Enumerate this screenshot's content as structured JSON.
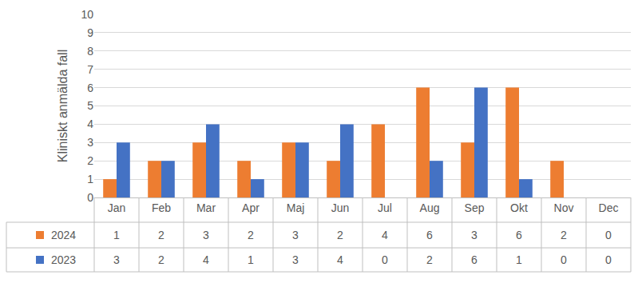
{
  "chart_data": {
    "type": "bar",
    "y_label": "Kliniskt anmälda fall",
    "categories": [
      "Jan",
      "Feb",
      "Mar",
      "Apr",
      "Maj",
      "Jun",
      "Jul",
      "Aug",
      "Sep",
      "Okt",
      "Nov",
      "Dec"
    ],
    "series": [
      {
        "name": "2024",
        "color": "#ed7d31",
        "values": [
          1,
          2,
          3,
          2,
          3,
          2,
          4,
          6,
          3,
          6,
          2,
          0
        ]
      },
      {
        "name": "2023",
        "color": "#4472c4",
        "values": [
          3,
          2,
          4,
          1,
          3,
          4,
          0,
          2,
          6,
          1,
          0,
          0
        ]
      }
    ],
    "ylim": [
      0,
      10
    ],
    "yticks": [
      0,
      1,
      2,
      3,
      4,
      5,
      6,
      7,
      8,
      9,
      10
    ],
    "grid": true
  }
}
